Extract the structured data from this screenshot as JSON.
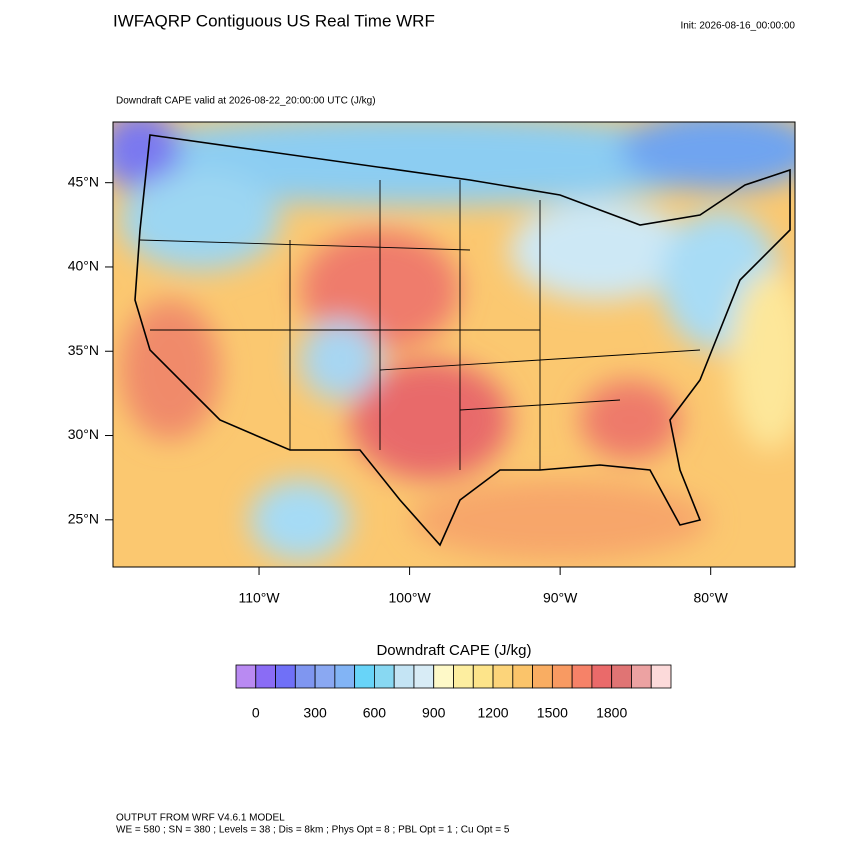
{
  "header": {
    "title": "IWFAQRP Contiguous US Real Time WRF",
    "init": "Init: 2026-08-16_00:00:00"
  },
  "plot": {
    "subtitle": "Downdraft CAPE valid at 2026-08-22_20:00:00 UTC   (J/kg)",
    "lat_lim": [
      22.2,
      48.6
    ],
    "lon_lim": [
      -119.7,
      -74.4
    ],
    "lat_ticks": [
      {
        "value": 45,
        "label": "45°N"
      },
      {
        "value": 40,
        "label": "40°N"
      },
      {
        "value": 35,
        "label": "35°N"
      },
      {
        "value": 30,
        "label": "30°N"
      },
      {
        "value": 25,
        "label": "25°N"
      }
    ],
    "lon_ticks": [
      {
        "value": -110,
        "label": "110°W"
      },
      {
        "value": -100,
        "label": "100°W"
      },
      {
        "value": -90,
        "label": "90°W"
      },
      {
        "value": -80,
        "label": "80°W"
      }
    ]
  },
  "colorbar": {
    "title": "Downdraft CAPE  (J/kg)",
    "colors": [
      "#b98af2",
      "#8a6cf5",
      "#7070f7",
      "#7f96f0",
      "#8aa8f2",
      "#82b4f5",
      "#68d4f8",
      "#88d8f2",
      "#c4e4f4",
      "#d8ecf6",
      "#fef9c8",
      "#fdeea0",
      "#fde48a",
      "#fcd47a",
      "#fbc46a",
      "#f9ad62",
      "#f89a62",
      "#f68268",
      "#ea6a6a",
      "#e07474",
      "#eca2a2",
      "#fcdada"
    ],
    "levels": [
      0,
      100,
      200,
      300,
      400,
      500,
      600,
      700,
      800,
      900,
      1000,
      1100,
      1200,
      1300,
      1400,
      1500,
      1600,
      1700,
      1800,
      1900,
      2000
    ],
    "ticks": [
      0,
      300,
      600,
      900,
      1200,
      1500,
      1800
    ]
  },
  "footer": {
    "lines": [
      "OUTPUT FROM WRF V4.6.1 MODEL",
      "WE = 580 ; SN = 380 ; Levels = 38 ; Dis = 8km ; Phys Opt = 8 ; PBL Opt = 1 ; Cu Opt = 5"
    ]
  }
}
